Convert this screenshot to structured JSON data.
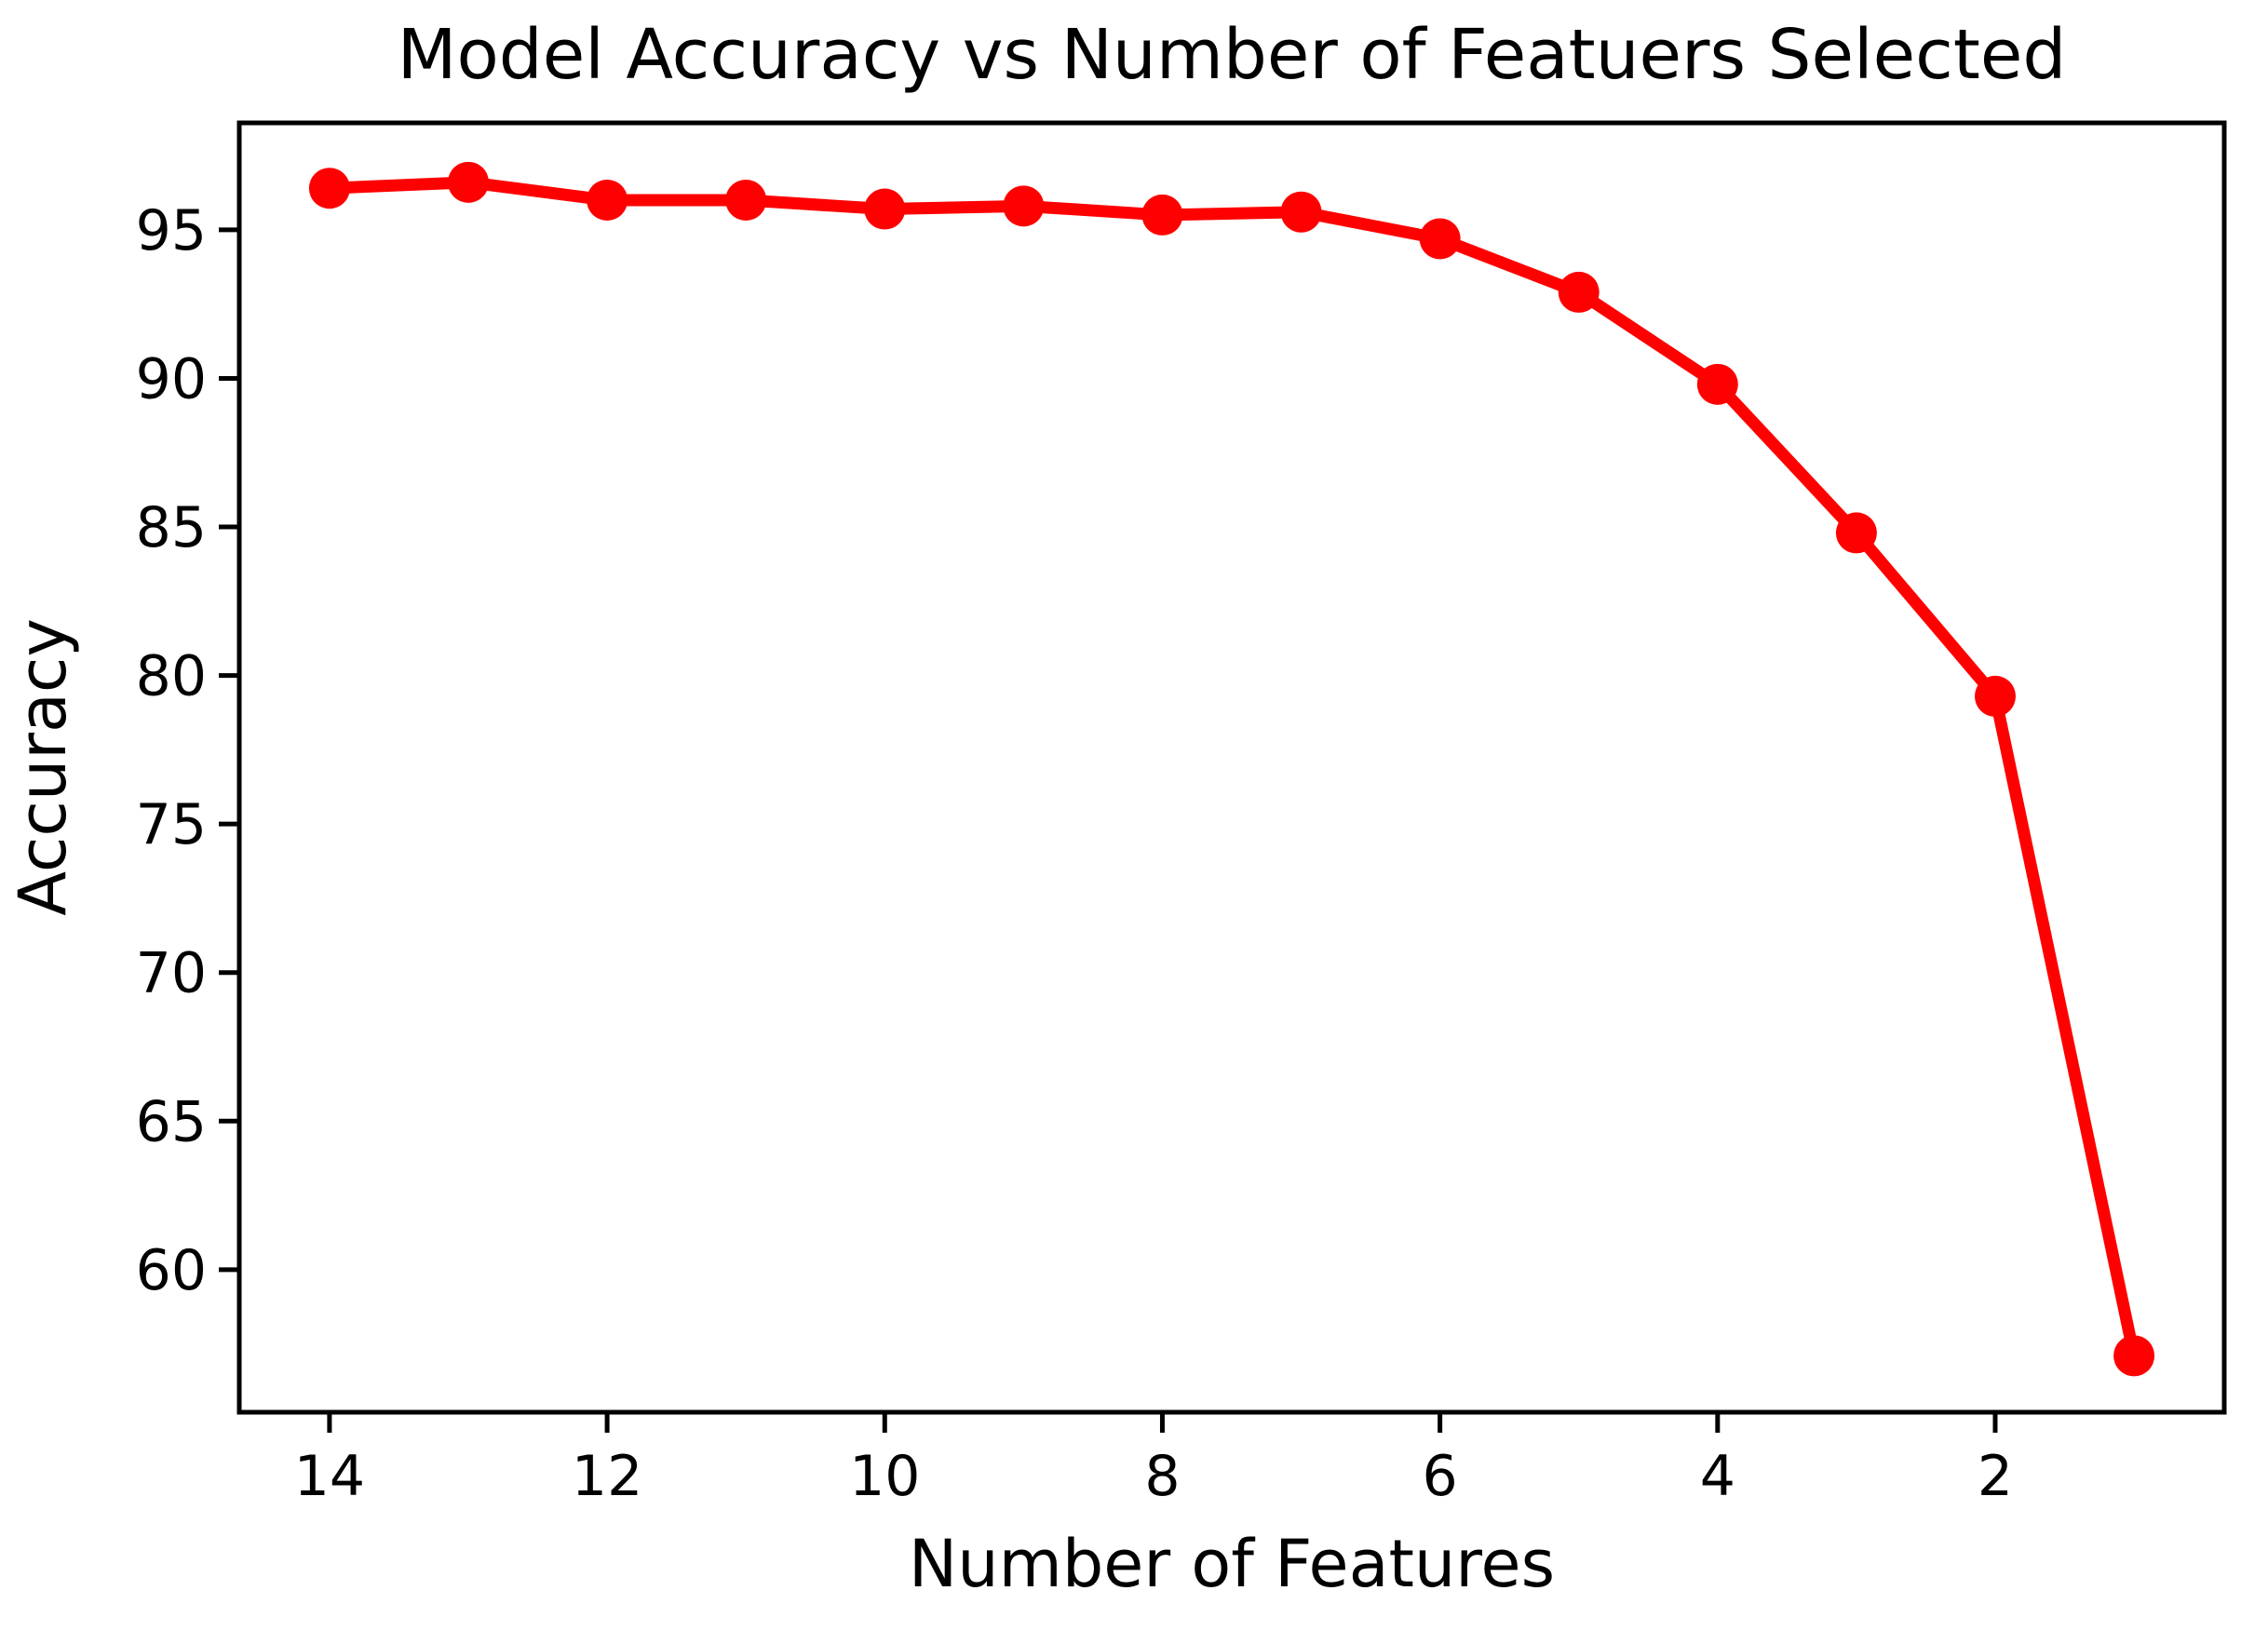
{
  "chart_data": {
    "type": "line",
    "title": "Model Accuracy vs Featuers Selected",
    "title_full": "Model Accuracy vs Number of Featuers Selected",
    "xlabel": "Number of Features",
    "ylabel": "Accuracy",
    "x": [
      14,
      13,
      12,
      11,
      10,
      9,
      8,
      7,
      6,
      5,
      4,
      3,
      2,
      1
    ],
    "y": [
      96.4,
      96.6,
      96.0,
      96.0,
      95.7,
      95.8,
      95.5,
      95.6,
      94.7,
      92.9,
      89.8,
      84.8,
      79.3,
      57.1
    ],
    "series_name": "Accuracy",
    "line_color": "#ff0000",
    "marker": "circle",
    "marker_color": "#ff0000",
    "grid": false,
    "legend": "none",
    "x_axis": {
      "ticks": [
        14,
        12,
        10,
        8,
        6,
        4,
        2
      ],
      "inverted": true,
      "range": [
        14.65,
        0.35
      ]
    },
    "y_axis": {
      "ticks": [
        95,
        90,
        85,
        80,
        75,
        70,
        65,
        60
      ],
      "range": [
        55.2,
        98.6
      ]
    },
    "axis_color": "#000000",
    "background_color": "#ffffff"
  }
}
